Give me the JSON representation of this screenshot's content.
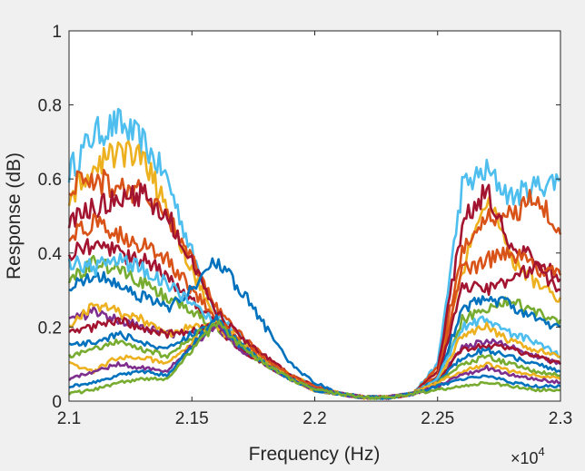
{
  "chart_data": {
    "type": "line",
    "title": "",
    "xlabel": "Frequency (Hz)",
    "ylabel": "Response (dB)",
    "xlim": [
      21000,
      23000
    ],
    "ylim": [
      0,
      1
    ],
    "x_exponent_label": "×10",
    "x_exponent_power": "4",
    "x_ticks": [
      21000,
      21500,
      22000,
      22500,
      23000
    ],
    "x_tick_labels": [
      "2.1",
      "2.15",
      "2.2",
      "2.25",
      "2.3"
    ],
    "y_ticks": [
      0,
      0.2,
      0.4,
      0.6,
      0.8,
      1
    ],
    "y_tick_labels": [
      "0",
      "0.2",
      "0.4",
      "0.6",
      "0.8",
      "1"
    ],
    "grid": false,
    "legend": "none",
    "x": [
      21000,
      21100,
      21200,
      21300,
      21400,
      21500,
      21600,
      21700,
      21800,
      21900,
      22000,
      22100,
      22200,
      22300,
      22400,
      22500,
      22600,
      22700,
      22800,
      22900,
      23000
    ],
    "series": [
      {
        "color": "#4DBEEE",
        "values": [
          0.62,
          0.72,
          0.75,
          0.7,
          0.6,
          0.4,
          0.24,
          0.17,
          0.12,
          0.07,
          0.04,
          0.02,
          0.01,
          0.01,
          0.02,
          0.1,
          0.58,
          0.62,
          0.55,
          0.58,
          0.6
        ]
      },
      {
        "color": "#EDB120",
        "values": [
          0.55,
          0.62,
          0.68,
          0.65,
          0.52,
          0.35,
          0.22,
          0.16,
          0.11,
          0.07,
          0.04,
          0.02,
          0.01,
          0.01,
          0.02,
          0.08,
          0.35,
          0.55,
          0.38,
          0.32,
          0.28
        ]
      },
      {
        "color": "#D95319",
        "values": [
          0.58,
          0.6,
          0.58,
          0.56,
          0.5,
          0.38,
          0.25,
          0.18,
          0.12,
          0.07,
          0.04,
          0.02,
          0.01,
          0.01,
          0.02,
          0.09,
          0.4,
          0.5,
          0.5,
          0.56,
          0.45
        ]
      },
      {
        "color": "#A2142F",
        "values": [
          0.48,
          0.52,
          0.55,
          0.56,
          0.5,
          0.38,
          0.24,
          0.17,
          0.12,
          0.07,
          0.04,
          0.02,
          0.01,
          0.01,
          0.02,
          0.08,
          0.48,
          0.57,
          0.42,
          0.38,
          0.33
        ]
      },
      {
        "color": "#D95319",
        "values": [
          0.44,
          0.48,
          0.45,
          0.42,
          0.38,
          0.3,
          0.22,
          0.16,
          0.11,
          0.07,
          0.04,
          0.02,
          0.01,
          0.01,
          0.02,
          0.07,
          0.35,
          0.38,
          0.4,
          0.36,
          0.34
        ]
      },
      {
        "color": "#A2142F",
        "values": [
          0.4,
          0.42,
          0.4,
          0.38,
          0.34,
          0.27,
          0.21,
          0.15,
          0.1,
          0.06,
          0.03,
          0.02,
          0.01,
          0.01,
          0.02,
          0.06,
          0.32,
          0.3,
          0.33,
          0.36,
          0.3
        ]
      },
      {
        "color": "#77AC30",
        "values": [
          0.32,
          0.38,
          0.35,
          0.32,
          0.28,
          0.24,
          0.2,
          0.14,
          0.1,
          0.06,
          0.03,
          0.02,
          0.01,
          0.01,
          0.02,
          0.06,
          0.22,
          0.25,
          0.27,
          0.24,
          0.22
        ]
      },
      {
        "color": "#0072BD",
        "values": [
          0.3,
          0.35,
          0.32,
          0.28,
          0.25,
          0.3,
          0.38,
          0.3,
          0.2,
          0.1,
          0.05,
          0.02,
          0.01,
          0.01,
          0.02,
          0.06,
          0.25,
          0.28,
          0.26,
          0.22,
          0.2
        ]
      },
      {
        "color": "#4DBEEE",
        "values": [
          0.38,
          0.36,
          0.38,
          0.36,
          0.32,
          0.26,
          0.21,
          0.15,
          0.1,
          0.06,
          0.03,
          0.02,
          0.01,
          0.01,
          0.02,
          0.06,
          0.2,
          0.22,
          0.18,
          0.16,
          0.12
        ]
      },
      {
        "color": "#7E2F8E",
        "values": [
          0.22,
          0.24,
          0.22,
          0.2,
          0.18,
          0.19,
          0.2,
          0.14,
          0.1,
          0.06,
          0.03,
          0.02,
          0.01,
          0.01,
          0.02,
          0.05,
          0.15,
          0.16,
          0.15,
          0.12,
          0.1
        ]
      },
      {
        "color": "#EDB120",
        "values": [
          0.2,
          0.26,
          0.24,
          0.22,
          0.18,
          0.2,
          0.21,
          0.15,
          0.1,
          0.06,
          0.03,
          0.02,
          0.01,
          0.01,
          0.02,
          0.05,
          0.18,
          0.2,
          0.16,
          0.14,
          0.12
        ]
      },
      {
        "color": "#A2142F",
        "values": [
          0.18,
          0.2,
          0.22,
          0.2,
          0.18,
          0.19,
          0.2,
          0.14,
          0.1,
          0.06,
          0.03,
          0.02,
          0.01,
          0.01,
          0.02,
          0.05,
          0.14,
          0.15,
          0.14,
          0.12,
          0.1
        ]
      },
      {
        "color": "#0072BD",
        "values": [
          0.15,
          0.16,
          0.18,
          0.16,
          0.14,
          0.18,
          0.21,
          0.15,
          0.1,
          0.06,
          0.03,
          0.02,
          0.01,
          0.01,
          0.02,
          0.05,
          0.12,
          0.14,
          0.12,
          0.1,
          0.08
        ]
      },
      {
        "color": "#77AC30",
        "values": [
          0.12,
          0.14,
          0.16,
          0.14,
          0.12,
          0.17,
          0.21,
          0.15,
          0.1,
          0.06,
          0.03,
          0.02,
          0.01,
          0.01,
          0.02,
          0.05,
          0.1,
          0.12,
          0.1,
          0.08,
          0.07
        ]
      },
      {
        "color": "#EDB120",
        "values": [
          0.1,
          0.08,
          0.12,
          0.12,
          0.1,
          0.16,
          0.2,
          0.15,
          0.1,
          0.06,
          0.03,
          0.02,
          0.01,
          0.01,
          0.02,
          0.05,
          0.08,
          0.1,
          0.08,
          0.07,
          0.06
        ]
      },
      {
        "color": "#7E2F8E",
        "values": [
          0.06,
          0.08,
          0.1,
          0.09,
          0.08,
          0.15,
          0.2,
          0.14,
          0.1,
          0.06,
          0.03,
          0.02,
          0.01,
          0.01,
          0.02,
          0.04,
          0.07,
          0.09,
          0.07,
          0.06,
          0.05
        ]
      },
      {
        "color": "#0072BD",
        "values": [
          0.04,
          0.05,
          0.07,
          0.08,
          0.07,
          0.15,
          0.22,
          0.15,
          0.1,
          0.06,
          0.03,
          0.02,
          0.01,
          0.01,
          0.02,
          0.04,
          0.06,
          0.07,
          0.05,
          0.04,
          0.04
        ]
      },
      {
        "color": "#77AC30",
        "values": [
          0.02,
          0.03,
          0.05,
          0.06,
          0.06,
          0.14,
          0.21,
          0.15,
          0.1,
          0.06,
          0.03,
          0.02,
          0.01,
          0.01,
          0.02,
          0.03,
          0.04,
          0.05,
          0.04,
          0.03,
          0.03
        ]
      }
    ]
  }
}
